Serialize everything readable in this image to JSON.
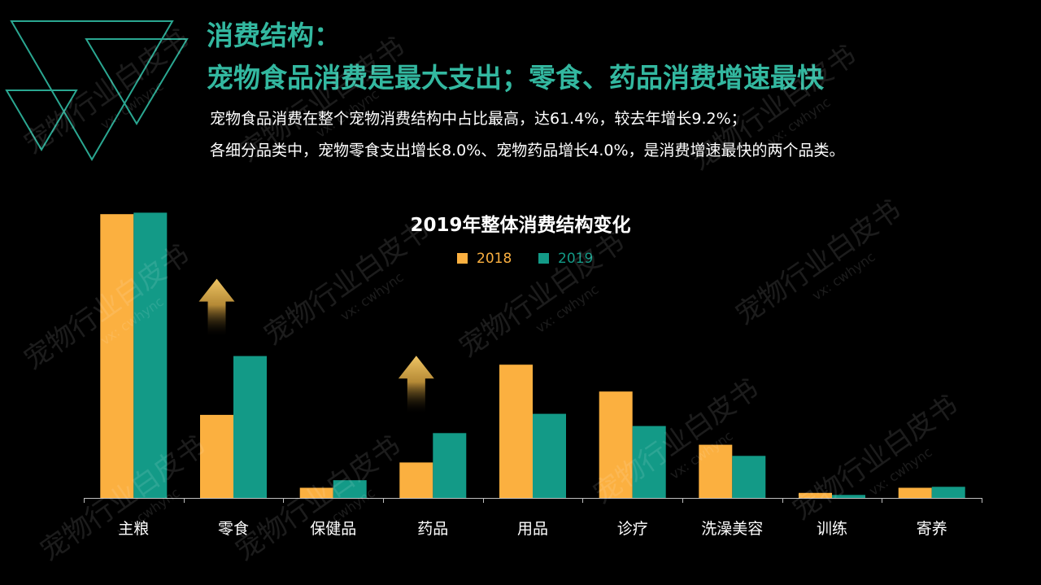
{
  "header": {
    "title_line1": "消费结构：",
    "title_line2": "宠物食品消费是最大支出；零食、药品消费增速最快"
  },
  "description": {
    "line1": "宠物食品消费在整个宠物消费结构中占比最高，达61.4%，较去年增长9.2%；",
    "line2": "各细分品类中，宠物零食支出增长8.0%、宠物药品增长4.0%，是消费增速最快的两个品类。"
  },
  "watermark": {
    "text": "宠物行业白皮书",
    "sub": "vx: cwhync"
  },
  "colors": {
    "accent": "#33b8a0",
    "series_2018": "#fbb040",
    "series_2019": "#139a87",
    "arrow": "#e9bf5a"
  },
  "chart_data": {
    "type": "bar",
    "title": "2019年整体消费结构变化",
    "categories": [
      "主粮",
      "零食",
      "保健品",
      "药品",
      "用品",
      "诊疗",
      "洗澡美容",
      "训练",
      "寄养"
    ],
    "series": [
      {
        "name": "2018",
        "values": [
          56.0,
          16.4,
          2.0,
          7.0,
          26.3,
          21.0,
          10.5,
          1.0,
          2.0
        ]
      },
      {
        "name": "2019",
        "values": [
          56.3,
          28.0,
          3.5,
          12.8,
          16.6,
          14.2,
          8.3,
          0.6,
          2.2
        ]
      }
    ],
    "ylim": [
      0,
      57
    ],
    "legend_position": "top-center",
    "highlighted_growth": [
      "零食",
      "药品"
    ],
    "grid": false,
    "xlabel": "",
    "ylabel": ""
  }
}
